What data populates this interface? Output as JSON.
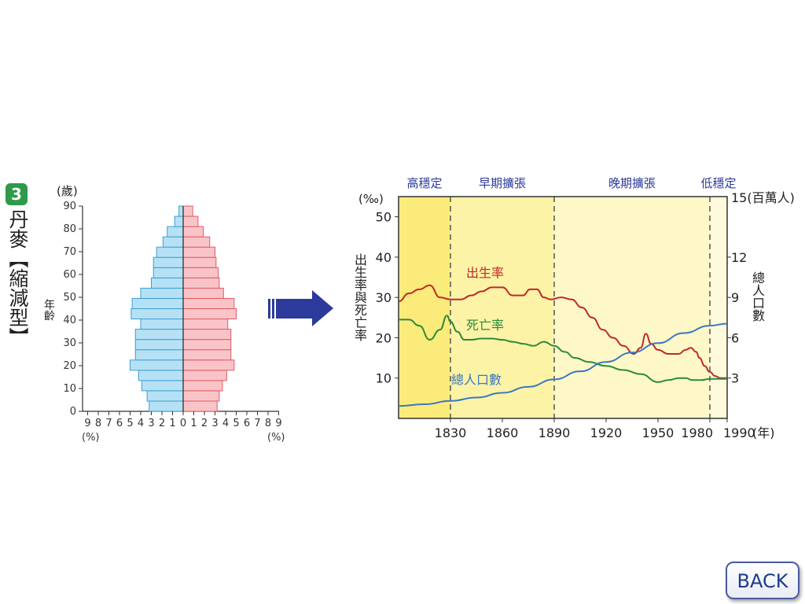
{
  "panel": {
    "number": "3",
    "title": "丹麥【縮減型】"
  },
  "pyramid": {
    "age_unit": "(歲)",
    "age_axis_title": "年齡",
    "age_ticks": [
      "0",
      "10",
      "20",
      "30",
      "40",
      "50",
      "60",
      "70",
      "80",
      "90"
    ],
    "pct_ticks_left": [
      "9",
      "8",
      "7",
      "6",
      "5",
      "4",
      "3",
      "2",
      "1",
      "0"
    ],
    "pct_ticks_right": [
      "1",
      "2",
      "3",
      "4",
      "5",
      "6",
      "7",
      "8",
      "9"
    ],
    "pct_unit_left": "(%)",
    "pct_unit_right": "(%)",
    "colors": {
      "male": "#b6e1f4",
      "male_stroke": "#3aa0d6",
      "female": "#f9c4c8",
      "female_stroke": "#e25a66"
    }
  },
  "arrow": {
    "color": "#2b3a9b",
    "icon": "right-arrow-icon"
  },
  "chart_data": {
    "type": "line",
    "stages": [
      {
        "label": "高穩定",
        "from": 1800,
        "to": 1830,
        "color": "#fbeb7a"
      },
      {
        "label": "早期擴張",
        "from": 1830,
        "to": 1890,
        "color": "#fdf3a6"
      },
      {
        "label": "晚期擴張",
        "from": 1890,
        "to": 1980,
        "color": "#fef8c8"
      },
      {
        "label": "低穩定",
        "from": 1980,
        "to": 1990,
        "color": "#fefadb"
      }
    ],
    "x_ticks": [
      "1830",
      "1860",
      "1890",
      "1920",
      "1950",
      "1980",
      "1990"
    ],
    "x_tick_values": [
      1830,
      1860,
      1890,
      1920,
      1950,
      1980,
      1990
    ],
    "xlim": [
      1800,
      1990
    ],
    "x_unit": "(年)",
    "y_left_unit": "(‰)",
    "y_left_label": "出生率與死亡率",
    "y_left_ticks": [
      "10",
      "20",
      "30",
      "40",
      "50"
    ],
    "ylim_left": [
      0,
      55
    ],
    "y_right_unit": "15(百萬人)",
    "y_right_label": "總人口數",
    "y_right_ticks": [
      "3",
      "6",
      "9",
      "12"
    ],
    "ylim_right": [
      0,
      16.5
    ],
    "series": [
      {
        "name": "出生率",
        "color": "#c0282d",
        "axis": "left",
        "x": [
          1800,
          1806,
          1812,
          1818,
          1824,
          1830,
          1836,
          1842,
          1848,
          1854,
          1860,
          1866,
          1872,
          1876,
          1880,
          1884,
          1888,
          1894,
          1900,
          1906,
          1912,
          1918,
          1924,
          1930,
          1936,
          1940,
          1943,
          1946,
          1950,
          1956,
          1962,
          1966,
          1969,
          1972,
          1974,
          1977,
          1980,
          1983,
          1986,
          1990
        ],
        "values": [
          29,
          31,
          32,
          33,
          30,
          29.5,
          29.5,
          30.5,
          31.5,
          32.5,
          32.5,
          30.5,
          30.5,
          32,
          32,
          30,
          29.5,
          30,
          29.5,
          27.5,
          25,
          22,
          20,
          18,
          16,
          17.5,
          21,
          18.5,
          17,
          16,
          16,
          17,
          17.5,
          16.5,
          15,
          13,
          11.5,
          10.5,
          10,
          10
        ]
      },
      {
        "name": "死亡率",
        "color": "#2c8a3c",
        "axis": "left",
        "x": [
          1800,
          1806,
          1812,
          1818,
          1824,
          1828,
          1830,
          1834,
          1838,
          1842,
          1848,
          1854,
          1860,
          1866,
          1872,
          1878,
          1884,
          1890,
          1896,
          1902,
          1910,
          1920,
          1930,
          1940,
          1950,
          1956,
          1962,
          1966,
          1970,
          1975,
          1980,
          1985,
          1990
        ],
        "values": [
          24.5,
          24.5,
          23,
          19.5,
          22,
          25.5,
          24,
          21.5,
          19.5,
          19.5,
          19.8,
          19.8,
          19.5,
          19,
          18.5,
          18,
          19,
          18,
          16.5,
          15,
          14,
          13,
          12,
          11,
          9,
          9.5,
          10,
          10,
          9.5,
          9.5,
          9.8,
          9.8,
          9.8
        ]
      },
      {
        "name": "總人口數",
        "color": "#3a78c2",
        "axis": "right",
        "x": [
          1800,
          1815,
          1830,
          1845,
          1860,
          1875,
          1890,
          1905,
          1920,
          1935,
          1950,
          1965,
          1980,
          1990
        ],
        "values": [
          0.92,
          1.05,
          1.3,
          1.55,
          1.9,
          2.35,
          2.9,
          3.5,
          4.2,
          4.9,
          5.6,
          6.35,
          6.9,
          7.05
        ]
      }
    ]
  }
}
